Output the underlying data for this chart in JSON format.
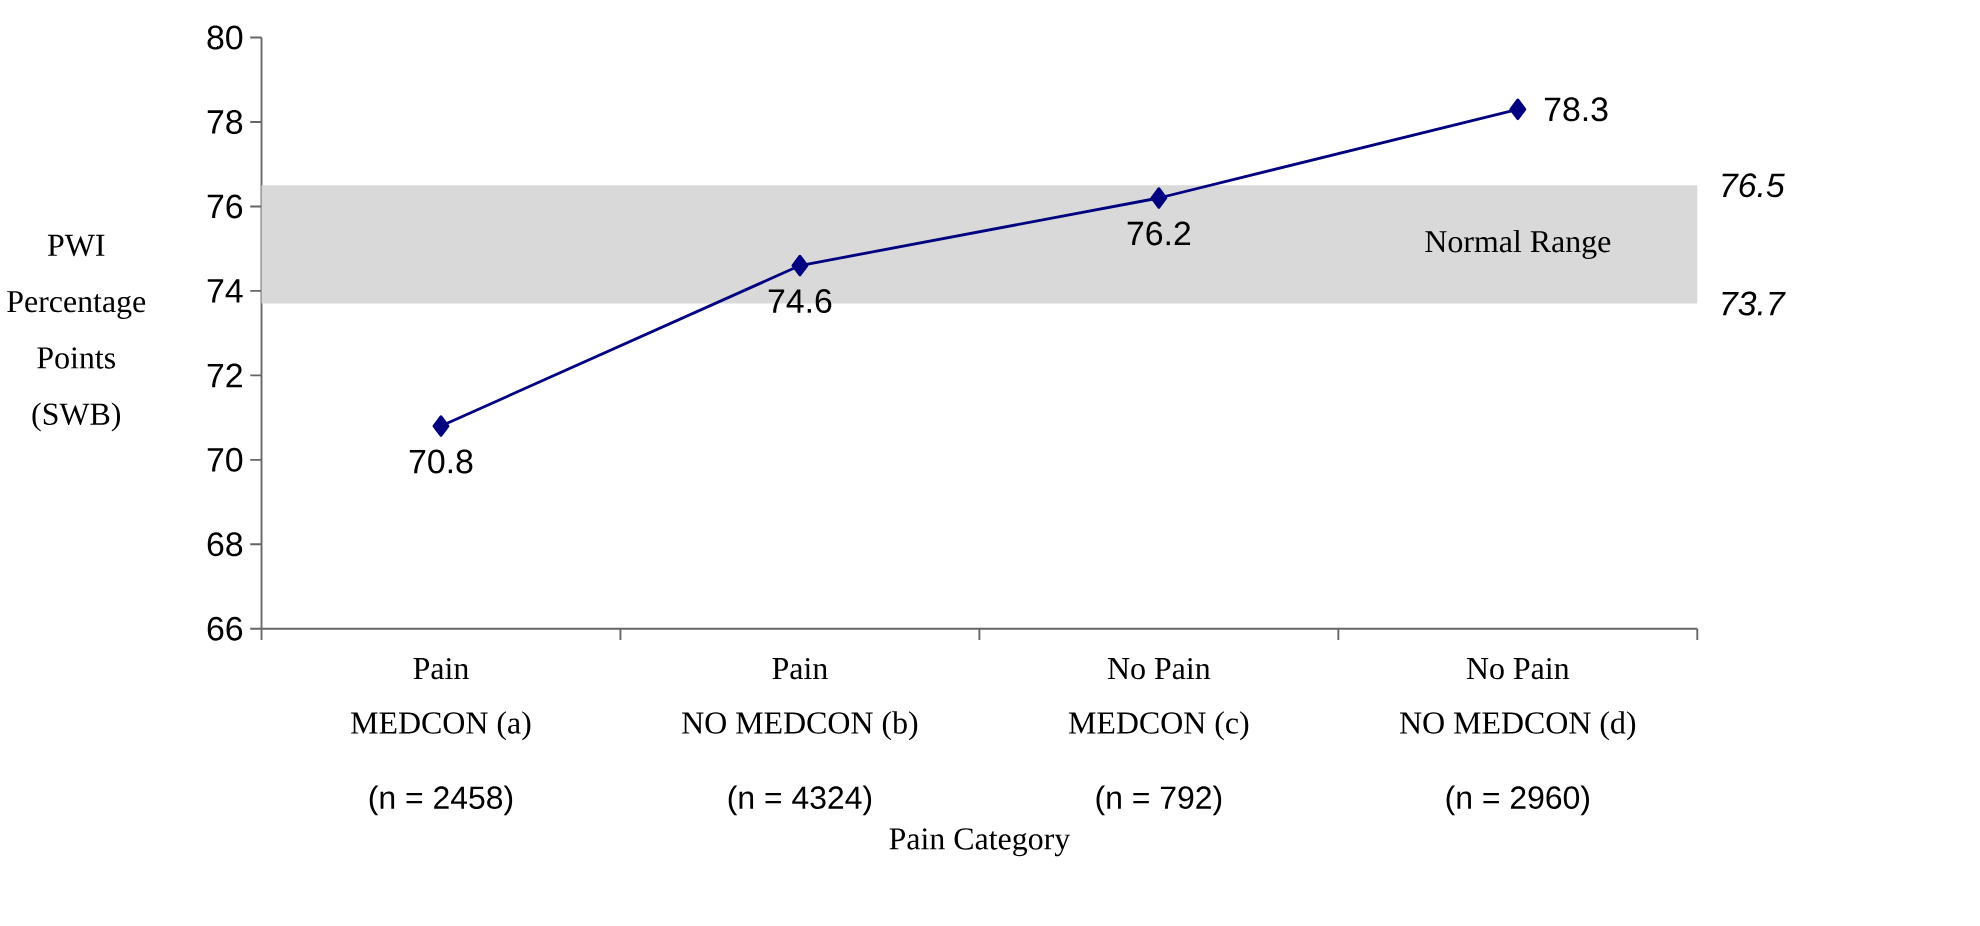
{
  "chart_data": {
    "type": "line",
    "xlabel": "Pain Category",
    "ylabel": "PWI\nPercentage\nPoints\n(SWB)",
    "categories": [
      "Pain\nMEDCON (a)",
      "Pain\nNO MEDCON (b)",
      "No Pain\nMEDCON (c)",
      "No Pain\nNO MEDCON (d)"
    ],
    "series": [
      {
        "color": "#000080",
        "values": [
          70.8,
          74.6,
          76.2,
          78.3
        ]
      }
    ],
    "ylim": [
      66,
      80
    ],
    "yticks": [
      66,
      68,
      70,
      72,
      74,
      76,
      78,
      80
    ],
    "y2lim": [
      66,
      80
    ],
    "y2ticks": [
      73.7,
      76.5
    ],
    "bands": [
      {
        "axis": "y",
        "from": 73.7,
        "to": 76.5,
        "label": "Normal Range",
        "color": "#d9d9d9"
      }
    ],
    "annotations": [
      "(n = 2458)",
      "(n = 4324)",
      "(n = 792)",
      "(n = 2960)"
    ],
    "data_labels": true,
    "marker": "diamond",
    "line_style": "solid"
  }
}
